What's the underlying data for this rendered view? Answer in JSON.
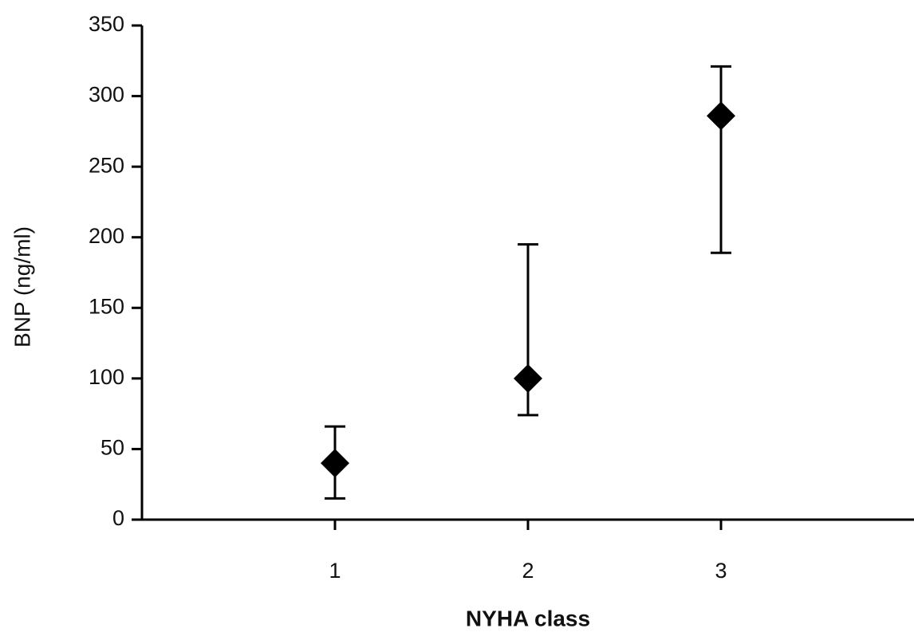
{
  "chart_data": {
    "type": "errorbar",
    "x_label": "NYHA class",
    "y_label": "BNP (ng/ml)",
    "x": [
      1,
      2,
      3
    ],
    "xlim": [
      0,
      4
    ],
    "xticks": [
      1,
      2,
      3
    ],
    "ylim": [
      0,
      350
    ],
    "yticks": [
      0,
      50,
      100,
      150,
      200,
      250,
      300,
      350
    ],
    "series": [
      {
        "color": "#000000",
        "marker": "diamond",
        "values": [
          40,
          100,
          286
        ],
        "lower": [
          15,
          74,
          189
        ],
        "upper": [
          66,
          195,
          321
        ]
      }
    ]
  }
}
